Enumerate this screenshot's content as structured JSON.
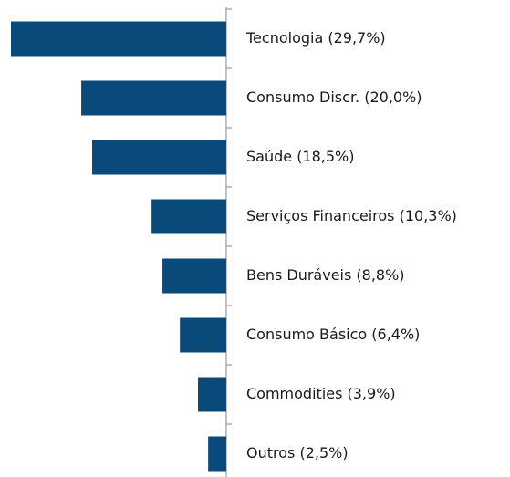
{
  "chart_data": {
    "type": "bar",
    "orientation": "horizontal",
    "categories": [
      "Tecnologia (29,7%)",
      "Consumo Discr. (20,0%)",
      "Saúde (18,5%)",
      "Serviços Financeiros (10,3%)",
      "Bens Duráveis (8,8%)",
      "Consumo Básico (6,4%)",
      "Commodities (3,9%)",
      "Outros (2,5%)"
    ],
    "values": [
      29.7,
      20.0,
      18.5,
      10.3,
      8.8,
      6.4,
      3.9,
      2.5
    ],
    "color": "#0a4a7a"
  }
}
